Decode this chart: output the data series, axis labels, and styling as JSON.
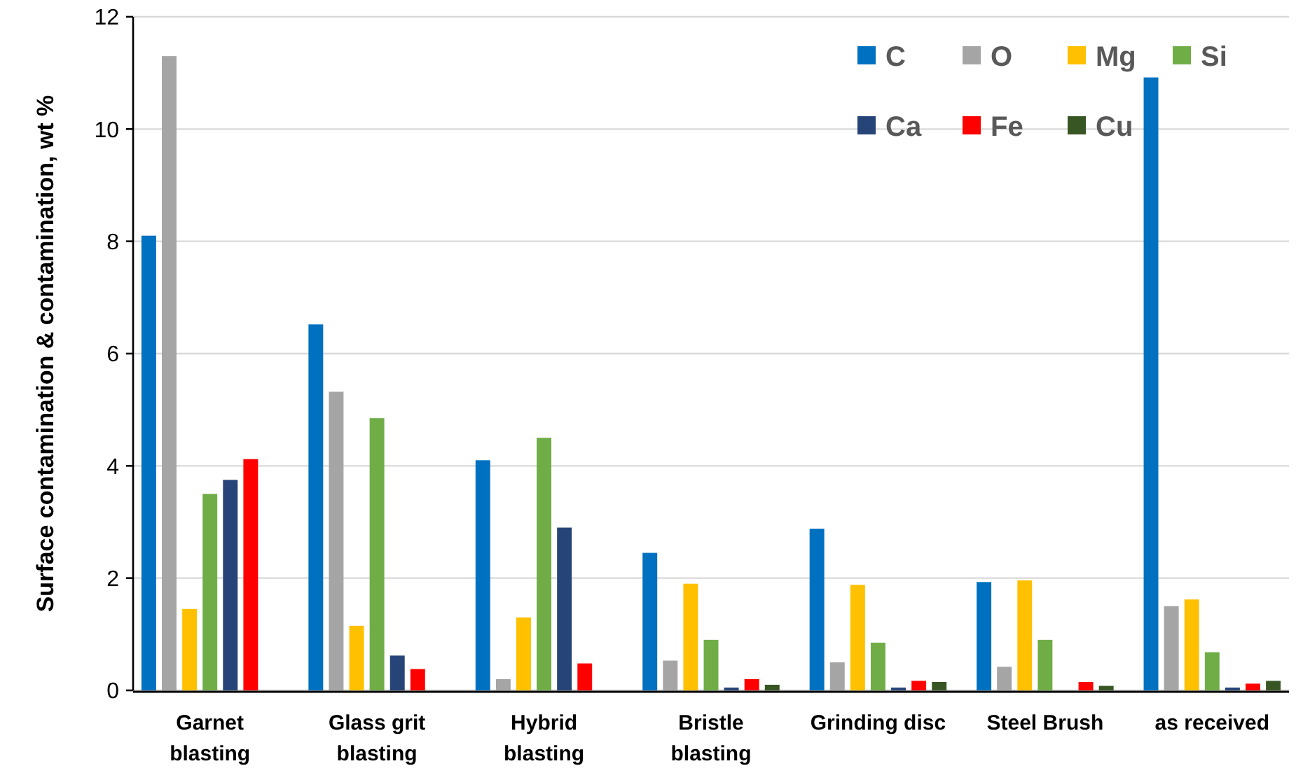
{
  "chart_data": {
    "type": "bar",
    "ylabel": "Surface contamination & contamination, wt %",
    "categories": [
      "Garnet blasting",
      "Glass grit blasting",
      "Hybrid blasting",
      "Bristle blasting",
      "Grinding disc",
      "Steel Brush",
      "as received"
    ],
    "series": [
      {
        "name": "C",
        "color": "#0070c0",
        "values": [
          8.1,
          6.52,
          4.1,
          2.45,
          2.88,
          1.93,
          10.92
        ]
      },
      {
        "name": "O",
        "color": "#a5a5a5",
        "values": [
          11.3,
          5.32,
          0.2,
          0.53,
          0.5,
          0.42,
          1.5
        ]
      },
      {
        "name": "Mg",
        "color": "#ffc000",
        "values": [
          1.45,
          1.15,
          1.3,
          1.9,
          1.88,
          1.96,
          1.62
        ]
      },
      {
        "name": "Si",
        "color": "#70ad47",
        "values": [
          3.5,
          4.85,
          4.5,
          0.9,
          0.85,
          0.9,
          0.68
        ]
      },
      {
        "name": "Ca",
        "color": "#264478",
        "values": [
          3.75,
          0.62,
          2.9,
          0.05,
          0.05,
          null,
          0.05
        ]
      },
      {
        "name": "Fe",
        "color": "#ff0000",
        "values": [
          4.12,
          0.38,
          0.48,
          0.2,
          0.17,
          0.15,
          0.12
        ]
      },
      {
        "name": "Cu",
        "color": "#375623",
        "values": [
          null,
          null,
          null,
          0.1,
          0.15,
          0.08,
          0.17
        ]
      }
    ],
    "ylim": [
      0,
      12
    ],
    "yticks": [
      0,
      2,
      4,
      6,
      8,
      10,
      12
    ],
    "grid": "y",
    "legend": "top right"
  }
}
